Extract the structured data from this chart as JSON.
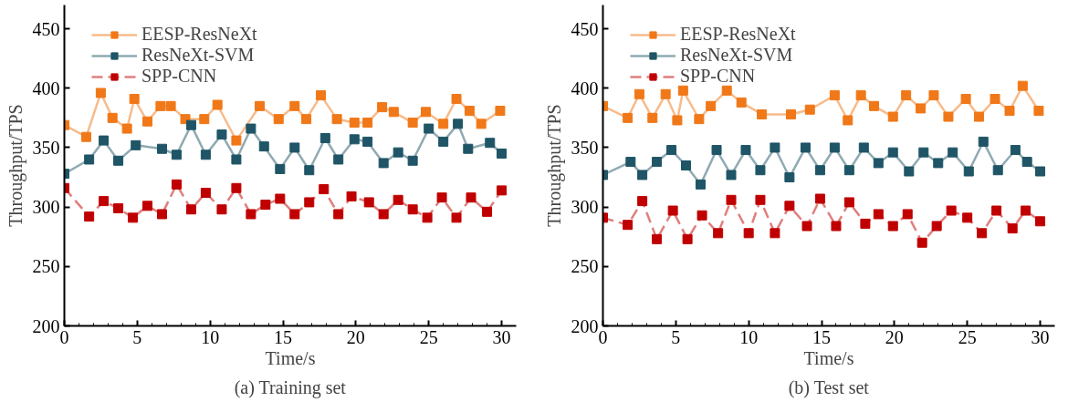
{
  "chart_data": [
    {
      "type": "line",
      "title": "(a) Training set",
      "xlabel": "Time/s",
      "ylabel": "Throughput/TPS",
      "xlim": [
        0,
        31
      ],
      "ylim": [
        200,
        470
      ],
      "xticks": [
        0,
        {
          "value": 1,
          "label": null
        },
        {
          "value": 2,
          "label": null
        },
        {
          "value": 3,
          "label": null
        },
        {
          "value": 4,
          "label": null
        },
        5,
        {
          "value": 6,
          "label": null
        },
        {
          "value": 7,
          "label": null
        },
        {
          "value": 8,
          "label": null
        },
        {
          "value": 9,
          "label": null
        },
        10,
        {
          "value": 11,
          "label": null
        },
        {
          "value": 12,
          "label": null
        },
        {
          "value": 13,
          "label": null
        },
        {
          "value": 14,
          "label": null
        },
        15,
        {
          "value": 16,
          "label": null
        },
        {
          "value": 17,
          "label": null
        },
        {
          "value": 18,
          "label": null
        },
        {
          "value": 19,
          "label": null
        },
        20,
        {
          "value": 21,
          "label": null
        },
        {
          "value": 22,
          "label": null
        },
        {
          "value": 23,
          "label": null
        },
        {
          "value": 24,
          "label": null
        },
        25,
        {
          "value": 26,
          "label": null
        },
        {
          "value": 27,
          "label": null
        },
        {
          "value": 28,
          "label": null
        },
        {
          "value": 29,
          "label": null
        },
        30
      ],
      "yticks": [
        200,
        250,
        300,
        350,
        400,
        450
      ],
      "grid": false,
      "legend": "top left",
      "marker": "square",
      "series": [
        {
          "name": "EESP-ResNeXt",
          "color": "#f07818",
          "line_style": "solid",
          "x": [
            0,
            1.5,
            2.5,
            3.3,
            4.3,
            4.8,
            5.7,
            6.6,
            7.3,
            8.3,
            9.6,
            10.5,
            11.8,
            13.4,
            14.7,
            15.8,
            16.6,
            17.6,
            18.7,
            19.9,
            20.8,
            21.8,
            22.6,
            23.9,
            24.8,
            26,
            26.9,
            27.8,
            28.6,
            29.9
          ],
          "values": [
            369,
            359,
            396,
            375,
            366,
            391,
            372,
            385,
            385,
            374,
            374,
            386,
            356,
            385,
            374,
            385,
            374,
            394,
            374,
            371,
            371,
            384,
            380,
            371,
            380,
            370,
            391,
            381,
            370,
            381
          ]
        },
        {
          "name": "ResNeXt-SVM",
          "color": "#1f5566",
          "line_style": "solid",
          "x": [
            0,
            1.7,
            2.7,
            3.7,
            4.9,
            6.7,
            7.7,
            8.7,
            9.7,
            10.8,
            11.8,
            12.8,
            13.7,
            14.8,
            15.8,
            16.8,
            17.9,
            18.8,
            19.9,
            20.8,
            21.9,
            22.9,
            23.9,
            25,
            26,
            27,
            27.7,
            29.2,
            30
          ],
          "values": [
            328,
            340,
            356,
            339,
            352,
            349,
            344,
            369,
            344,
            361,
            340,
            366,
            351,
            332,
            350,
            331,
            358,
            340,
            357,
            355,
            337,
            346,
            339,
            366,
            355,
            370,
            349,
            354,
            345
          ]
        },
        {
          "name": "SPP-CNN",
          "color": "#c00000",
          "line_style": "dashed",
          "x": [
            0,
            1.7,
            2.7,
            3.7,
            4.7,
            5.7,
            6.7,
            7.7,
            8.7,
            9.7,
            10.8,
            11.8,
            12.8,
            13.8,
            14.8,
            15.8,
            16.8,
            17.8,
            18.8,
            19.7,
            20.9,
            21.9,
            22.9,
            23.9,
            24.9,
            25.9,
            26.9,
            27.9,
            29,
            30
          ],
          "values": [
            316,
            292,
            305,
            299,
            291,
            301,
            294,
            319,
            298,
            312,
            298,
            316,
            294,
            302,
            307,
            294,
            304,
            315,
            294,
            309,
            304,
            294,
            306,
            298,
            291,
            308,
            291,
            308,
            296,
            314
          ]
        }
      ]
    },
    {
      "type": "line",
      "title": "(b) Test set",
      "xlabel": "Time/s",
      "ylabel": "Throughput/TPS",
      "xlim": [
        0,
        31
      ],
      "ylim": [
        200,
        470
      ],
      "xticks": [
        0,
        {
          "value": 1,
          "label": null
        },
        {
          "value": 2,
          "label": null
        },
        {
          "value": 3,
          "label": null
        },
        {
          "value": 4,
          "label": null
        },
        5,
        {
          "value": 6,
          "label": null
        },
        {
          "value": 7,
          "label": null
        },
        {
          "value": 8,
          "label": null
        },
        {
          "value": 9,
          "label": null
        },
        10,
        {
          "value": 11,
          "label": null
        },
        {
          "value": 12,
          "label": null
        },
        {
          "value": 13,
          "label": null
        },
        {
          "value": 14,
          "label": null
        },
        15,
        {
          "value": 16,
          "label": null
        },
        {
          "value": 17,
          "label": null
        },
        {
          "value": 18,
          "label": null
        },
        {
          "value": 19,
          "label": null
        },
        20,
        {
          "value": 21,
          "label": null
        },
        {
          "value": 22,
          "label": null
        },
        {
          "value": 23,
          "label": null
        },
        {
          "value": 24,
          "label": null
        },
        25,
        {
          "value": 26,
          "label": null
        },
        {
          "value": 27,
          "label": null
        },
        {
          "value": 28,
          "label": null
        },
        {
          "value": 29,
          "label": null
        },
        30
      ],
      "yticks": [
        200,
        250,
        300,
        350,
        400,
        450
      ],
      "grid": false,
      "legend": "top left",
      "marker": "square",
      "series": [
        {
          "name": "EESP-ResNeXt",
          "color": "#f07818",
          "line_style": "solid",
          "x": [
            0,
            1.7,
            2.5,
            3.4,
            4.3,
            5.1,
            5.5,
            6.6,
            7.4,
            8.5,
            9.5,
            10.9,
            12.9,
            14.2,
            15.9,
            16.8,
            17.7,
            18.6,
            19.9,
            20.8,
            21.8,
            22.7,
            23.7,
            24.9,
            25.8,
            26.9,
            27.9,
            28.8,
            29.9
          ],
          "values": [
            385,
            375,
            395,
            375,
            395,
            373,
            398,
            374,
            385,
            398,
            388,
            378,
            378,
            382,
            394,
            373,
            394,
            385,
            376,
            394,
            383,
            394,
            376,
            391,
            376,
            391,
            381,
            402,
            381
          ]
        },
        {
          "name": "ResNeXt-SVM",
          "color": "#1f5566",
          "line_style": "solid",
          "x": [
            0,
            1.9,
            2.7,
            3.7,
            4.7,
            5.7,
            6.7,
            7.8,
            8.8,
            9.8,
            10.8,
            11.8,
            12.8,
            13.9,
            14.9,
            15.9,
            16.9,
            17.9,
            18.9,
            19.9,
            21,
            22,
            23,
            24,
            25.1,
            26.1,
            27.1,
            28.3,
            29.1,
            30
          ],
          "values": [
            327,
            338,
            327,
            338,
            348,
            335,
            319,
            348,
            327,
            348,
            331,
            350,
            325,
            350,
            331,
            350,
            331,
            350,
            337,
            346,
            330,
            346,
            337,
            346,
            330,
            355,
            331,
            348,
            338,
            330
          ]
        },
        {
          "name": "SPP-CNN",
          "color": "#c00000",
          "line_style": "dashed",
          "x": [
            0,
            1.7,
            2.7,
            3.7,
            4.8,
            5.8,
            6.8,
            7.9,
            8.8,
            10,
            10.8,
            11.8,
            12.8,
            14,
            14.9,
            16,
            16.9,
            18,
            18.9,
            19.9,
            20.9,
            21.9,
            22.9,
            23.9,
            25,
            26,
            27,
            28.1,
            29,
            30
          ],
          "values": [
            291,
            285,
            305,
            273,
            297,
            273,
            293,
            278,
            306,
            278,
            306,
            278,
            301,
            284,
            307,
            284,
            304,
            286,
            294,
            284,
            294,
            270,
            284,
            297,
            291,
            278,
            297,
            282,
            297,
            288
          ]
        }
      ]
    }
  ]
}
